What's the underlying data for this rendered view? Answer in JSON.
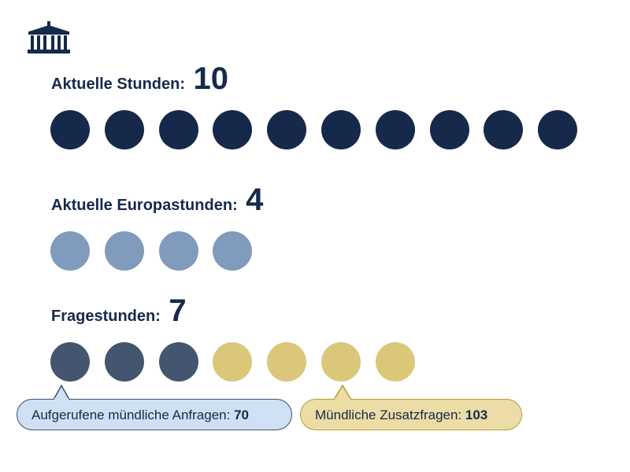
{
  "colors": {
    "dark_navy": "#16294a",
    "light_blue": "#809bbb",
    "slate_blue": "#44566f",
    "gold": "#dac779",
    "callout_blue_bg": "#cfe0f4",
    "callout_gold_bg": "#ecdca6"
  },
  "logo": {
    "icon": "parliament-building-icon"
  },
  "chart_data": {
    "type": "pictogram",
    "sections": [
      {
        "label": "Aktuelle Stunden:",
        "value_text": "10",
        "value": 10,
        "color": "#16294a"
      },
      {
        "label": "Aktuelle Europastunden:",
        "value_text": "4",
        "value": 4,
        "color": "#809bbb"
      },
      {
        "label": "Fragestunden:",
        "value_text": "7",
        "value": 7,
        "groups": [
          {
            "count": 3,
            "color": "#44566f"
          },
          {
            "count": 4,
            "color": "#dac779"
          }
        ]
      }
    ],
    "callouts": [
      {
        "text": "Aufgerufene mündliche Anfragen:",
        "value": "70"
      },
      {
        "text": "Mündliche Zusatzfragen:",
        "value": "103"
      }
    ]
  }
}
